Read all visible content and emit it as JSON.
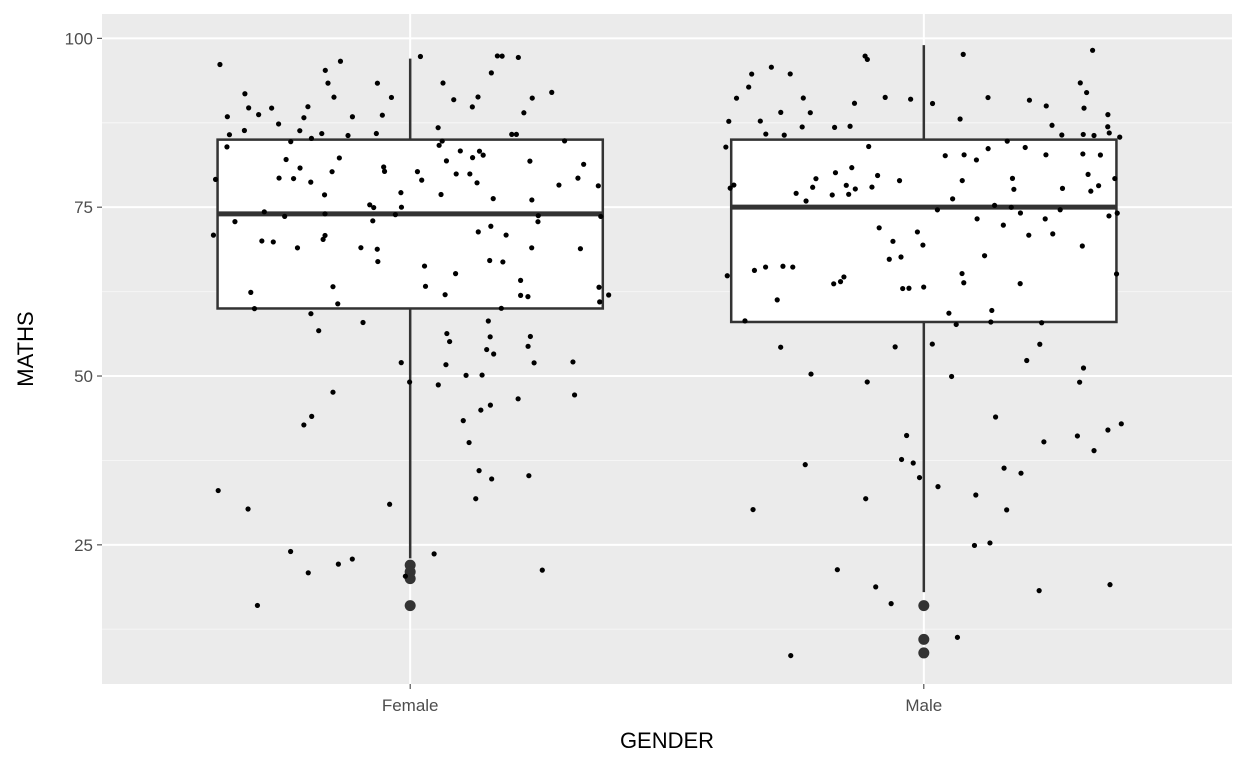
{
  "chart_data": {
    "type": "boxplot",
    "xlabel": "GENDER",
    "ylabel": "MATHS",
    "ylim": [
      4.4,
      103.6
    ],
    "yticks": [
      25,
      50,
      75,
      100
    ],
    "grid": true,
    "categories": [
      "Female",
      "Male"
    ],
    "boxes": [
      {
        "category": "Female",
        "q1": 60,
        "median": 74,
        "q3": 85,
        "whisker_low": 23,
        "whisker_high": 97,
        "outliers": [
          22,
          21,
          20,
          16
        ]
      },
      {
        "category": "Male",
        "q1": 58,
        "median": 75,
        "q3": 85,
        "whisker_low": 18,
        "whisker_high": 99,
        "outliers": [
          16,
          11,
          9
        ]
      }
    ],
    "jitter_points": {
      "Female": [
        90,
        43,
        50,
        79,
        76,
        71,
        62,
        85,
        79,
        78,
        60,
        67,
        86,
        79,
        67,
        74,
        70,
        69,
        61,
        86,
        80,
        73,
        66,
        46,
        52,
        54,
        56,
        58,
        93,
        89,
        79,
        79,
        77,
        69,
        69,
        63,
        65,
        33,
        31,
        32,
        20,
        24,
        52,
        79,
        80,
        91,
        70,
        62,
        82,
        83,
        84,
        86,
        92,
        91,
        91,
        88,
        75,
        71,
        53,
        54,
        56,
        48,
        44,
        40,
        36,
        82,
        83,
        87,
        45,
        22,
        23,
        21,
        16,
        78,
        80,
        56,
        52,
        74,
        86,
        91,
        90,
        89,
        97,
        95,
        69,
        69,
        30,
        88,
        81,
        93,
        85,
        80,
        74,
        60,
        58,
        57,
        47,
        70,
        74,
        67,
        77,
        81,
        82,
        81,
        80,
        85,
        84,
        75,
        74,
        86,
        87,
        93,
        97,
        89,
        91,
        63,
        55,
        24,
        47,
        96,
        95,
        97,
        97,
        85,
        86,
        82,
        82,
        64,
        35,
        21,
        86,
        90,
        90,
        75,
        73,
        83,
        74,
        59,
        49,
        49,
        52,
        50,
        61,
        62,
        62,
        88,
        35,
        43,
        71,
        73,
        63,
        77,
        79,
        72,
        71,
        86,
        92,
        97,
        62,
        76
      ],
      "Male": [
        79,
        79,
        74,
        60,
        58,
        58,
        92,
        91,
        96,
        43,
        38,
        39,
        32,
        18,
        19,
        78,
        78,
        67,
        68,
        86,
        88,
        84,
        87,
        88,
        86,
        86,
        71,
        58,
        44,
        88,
        91,
        87,
        89,
        79,
        78,
        77,
        70,
        66,
        90,
        90,
        83,
        93,
        98,
        97,
        65,
        49,
        35,
        37,
        34,
        59,
        52,
        84,
        89,
        87,
        90,
        91,
        86,
        72,
        71,
        77,
        74,
        65,
        64,
        61,
        64,
        54,
        9,
        84,
        86,
        87,
        78,
        76,
        75,
        74,
        72,
        71,
        64,
        64,
        68,
        42,
        40,
        41,
        58,
        83,
        84,
        80,
        78,
        76,
        75,
        75,
        98,
        97,
        95,
        90,
        11,
        16,
        30,
        63,
        78,
        80,
        83,
        82,
        83,
        81,
        78,
        77,
        73,
        73,
        66,
        66,
        55,
        50,
        49,
        50,
        21,
        25,
        36,
        93,
        91,
        95,
        87,
        83,
        85,
        80,
        79,
        79,
        77,
        78,
        78,
        75,
        63,
        65,
        69,
        69,
        66,
        91,
        85,
        86,
        89,
        91,
        41,
        32,
        19,
        30,
        37,
        36,
        25,
        54,
        51,
        55,
        65,
        63
      ]
    },
    "colors": {
      "panel": "#EBEBEB",
      "grid": "#FFFFFF",
      "box_line": "#333333",
      "box_fill": "#FFFFFF",
      "points": "#000000",
      "tick_text": "#4D4D4D"
    }
  }
}
